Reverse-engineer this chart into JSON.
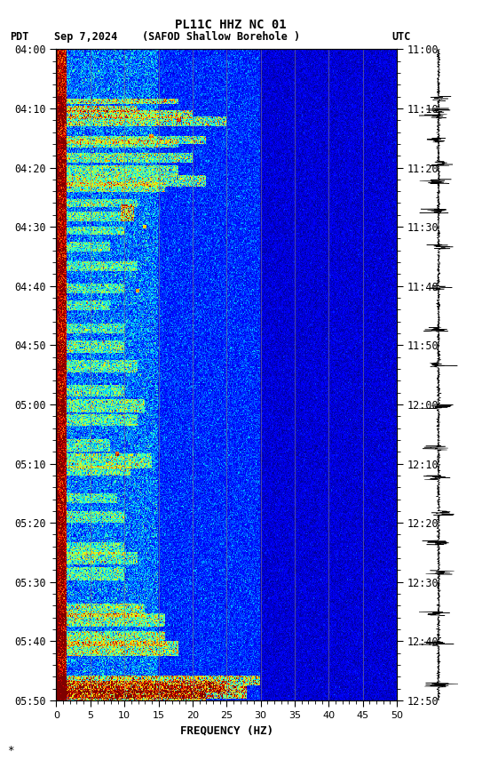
{
  "title_line1": "PL11C HHZ NC 01",
  "xlabel": "FREQUENCY (HZ)",
  "freq_min": 0,
  "freq_max": 50,
  "ytick_labels_left": [
    "04:00",
    "04:10",
    "04:20",
    "04:30",
    "04:40",
    "04:50",
    "05:00",
    "05:10",
    "05:20",
    "05:30",
    "05:40",
    "05:50"
  ],
  "ytick_labels_right": [
    "11:00",
    "11:10",
    "11:20",
    "11:30",
    "11:40",
    "11:50",
    "12:00",
    "12:10",
    "12:20",
    "12:30",
    "12:40",
    "12:50"
  ],
  "bg_color": "#000080",
  "fig_bg_color": "#ffffff",
  "grid_color": "#808080",
  "colormap": "jet",
  "font_color": "#000000",
  "tick_color": "#000000",
  "pdt_label": "PDT",
  "date_label": "Sep 7,2024",
  "station_label": "(SAFOD Shallow Borehole )",
  "utc_label": "UTC",
  "asterisk": "*"
}
